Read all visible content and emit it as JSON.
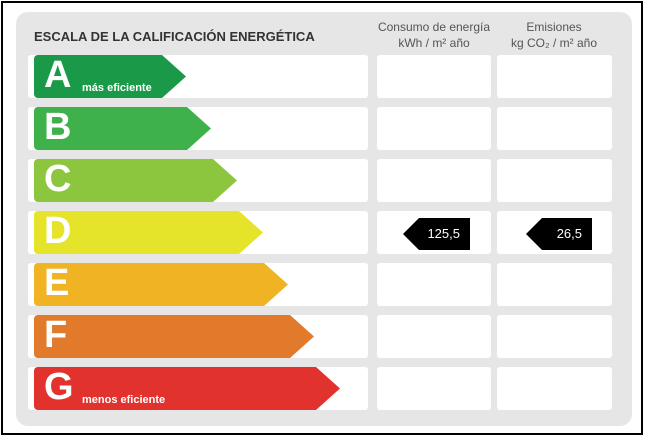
{
  "title": "ESCALA DE LA CALIFICACIÓN ENERGÉTICA",
  "columns": [
    {
      "line1": "Consumo de energía",
      "line2": "kWh  / m² año"
    },
    {
      "line1": "Emisiones",
      "line2": "kg CO₂  / m² año"
    }
  ],
  "ratings": [
    {
      "letter": "A",
      "sub": "más eficiente",
      "color": "#1a9a48"
    },
    {
      "letter": "B",
      "sub": "",
      "color": "#3fb14a"
    },
    {
      "letter": "C",
      "sub": "",
      "color": "#8cc63f"
    },
    {
      "letter": "D",
      "sub": "",
      "color": "#e5e42a"
    },
    {
      "letter": "E",
      "sub": "",
      "color": "#f0b323"
    },
    {
      "letter": "F",
      "sub": "",
      "color": "#e27a2b"
    },
    {
      "letter": "G",
      "sub": "menos eficiente",
      "color": "#e2322d"
    }
  ],
  "current_rating": "D",
  "values": {
    "consumo": "125,5",
    "emisiones": "26,5"
  }
}
